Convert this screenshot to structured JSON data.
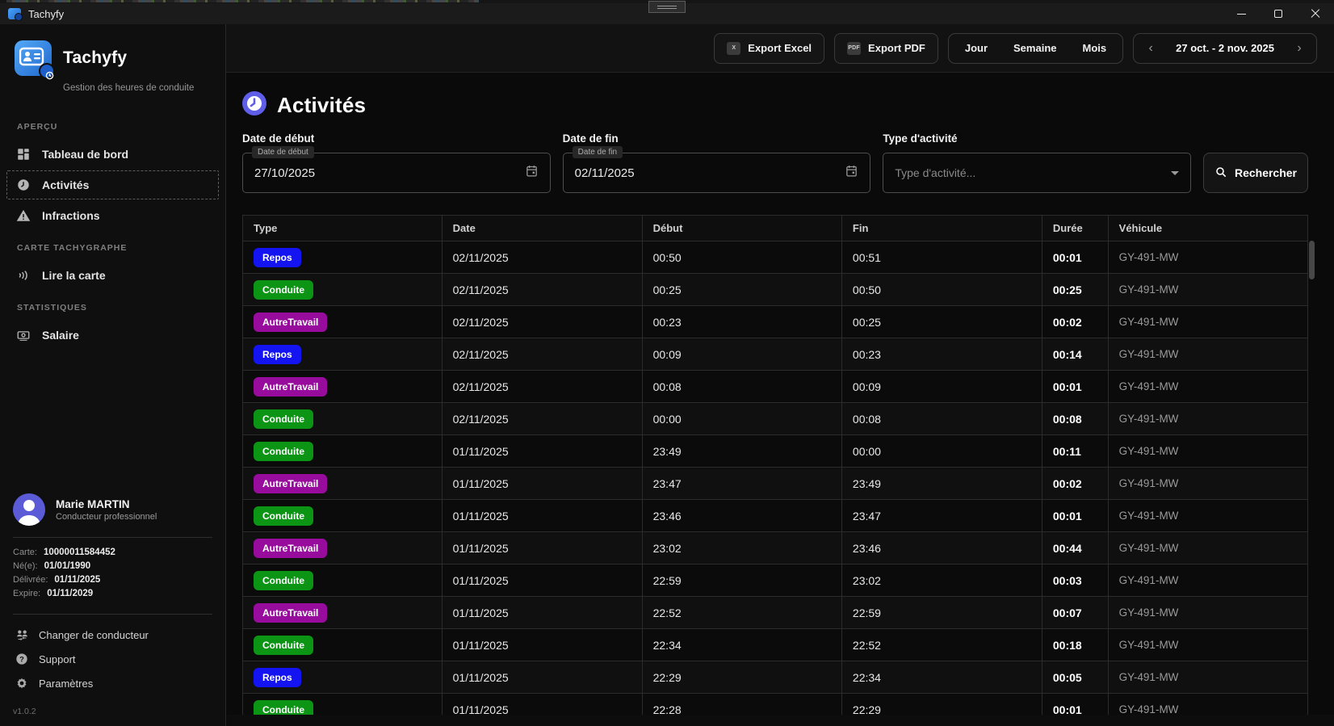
{
  "titlebar": {
    "title": "Tachyfy"
  },
  "sidebar": {
    "brand": {
      "name": "Tachyfy",
      "tagline": "Gestion des heures de conduite"
    },
    "sections": [
      {
        "label": "APERÇU",
        "items": [
          {
            "id": "tableau-de-bord",
            "label": "Tableau de bord",
            "icon": "dashboard",
            "active": false
          },
          {
            "id": "activites",
            "label": "Activités",
            "icon": "clock",
            "active": true
          },
          {
            "id": "infractions",
            "label": "Infractions",
            "icon": "warning",
            "active": false
          }
        ]
      },
      {
        "label": "CARTE TACHYGRAPHE",
        "items": [
          {
            "id": "lire-la-carte",
            "label": "Lire la carte",
            "icon": "contactless",
            "active": false
          }
        ]
      },
      {
        "label": "STATISTIQUES",
        "items": [
          {
            "id": "salaire",
            "label": "Salaire",
            "icon": "banknote",
            "active": false
          }
        ]
      }
    ],
    "profile": {
      "name": "Marie MARTIN",
      "role": "Conducteur professionnel"
    },
    "card_info": [
      {
        "label": "Carte:",
        "value": "10000011584452"
      },
      {
        "label": "Né(e):",
        "value": "01/01/1990"
      },
      {
        "label": "Délivrée:",
        "value": "01/11/2025"
      },
      {
        "label": "Expire:",
        "value": "01/11/2029"
      }
    ],
    "footer_links": [
      {
        "id": "changer-de-conducteur",
        "label": "Changer de conducteur",
        "icon": "users"
      },
      {
        "id": "support",
        "label": "Support",
        "icon": "help"
      },
      {
        "id": "parametres",
        "label": "Paramètres",
        "icon": "gear"
      }
    ],
    "version": "v1.0.2"
  },
  "toolbar": {
    "export_excel": "Export Excel",
    "export_excel_icon_text": "X",
    "export_pdf": "Export PDF",
    "export_pdf_icon_text": "PDF",
    "period_tabs": [
      "Jour",
      "Semaine",
      "Mois"
    ],
    "prev_glyph": "‹",
    "next_glyph": "›",
    "date_range": "27 oct. - 2 nov. 2025"
  },
  "main": {
    "title": "Activités",
    "filters": {
      "start": {
        "label": "Date de début",
        "value": "27/10/2025"
      },
      "end": {
        "label": "Date de fin",
        "value": "02/11/2025"
      },
      "type": {
        "label": "Type d'activité",
        "placeholder": "Type d'activité..."
      },
      "search_label": "Rechercher"
    },
    "table": {
      "columns": [
        "Type",
        "Date",
        "Début",
        "Fin",
        "Durée",
        "Véhicule"
      ],
      "badge_colors": {
        "Repos": "#1414f2",
        "Conduite": "#0c9414",
        "AutreTravail": "#970c9c"
      },
      "rows": [
        {
          "type": "Repos",
          "date": "02/11/2025",
          "start": "00:50",
          "end": "00:51",
          "duration": "00:01",
          "vehicle": "GY-491-MW"
        },
        {
          "type": "Conduite",
          "date": "02/11/2025",
          "start": "00:25",
          "end": "00:50",
          "duration": "00:25",
          "vehicle": "GY-491-MW"
        },
        {
          "type": "AutreTravail",
          "date": "02/11/2025",
          "start": "00:23",
          "end": "00:25",
          "duration": "00:02",
          "vehicle": "GY-491-MW"
        },
        {
          "type": "Repos",
          "date": "02/11/2025",
          "start": "00:09",
          "end": "00:23",
          "duration": "00:14",
          "vehicle": "GY-491-MW"
        },
        {
          "type": "AutreTravail",
          "date": "02/11/2025",
          "start": "00:08",
          "end": "00:09",
          "duration": "00:01",
          "vehicle": "GY-491-MW"
        },
        {
          "type": "Conduite",
          "date": "02/11/2025",
          "start": "00:00",
          "end": "00:08",
          "duration": "00:08",
          "vehicle": "GY-491-MW"
        },
        {
          "type": "Conduite",
          "date": "01/11/2025",
          "start": "23:49",
          "end": "00:00",
          "duration": "00:11",
          "vehicle": "GY-491-MW"
        },
        {
          "type": "AutreTravail",
          "date": "01/11/2025",
          "start": "23:47",
          "end": "23:49",
          "duration": "00:02",
          "vehicle": "GY-491-MW"
        },
        {
          "type": "Conduite",
          "date": "01/11/2025",
          "start": "23:46",
          "end": "23:47",
          "duration": "00:01",
          "vehicle": "GY-491-MW"
        },
        {
          "type": "AutreTravail",
          "date": "01/11/2025",
          "start": "23:02",
          "end": "23:46",
          "duration": "00:44",
          "vehicle": "GY-491-MW"
        },
        {
          "type": "Conduite",
          "date": "01/11/2025",
          "start": "22:59",
          "end": "23:02",
          "duration": "00:03",
          "vehicle": "GY-491-MW"
        },
        {
          "type": "AutreTravail",
          "date": "01/11/2025",
          "start": "22:52",
          "end": "22:59",
          "duration": "00:07",
          "vehicle": "GY-491-MW"
        },
        {
          "type": "Conduite",
          "date": "01/11/2025",
          "start": "22:34",
          "end": "22:52",
          "duration": "00:18",
          "vehicle": "GY-491-MW"
        },
        {
          "type": "Repos",
          "date": "01/11/2025",
          "start": "22:29",
          "end": "22:34",
          "duration": "00:05",
          "vehicle": "GY-491-MW"
        },
        {
          "type": "Conduite",
          "date": "01/11/2025",
          "start": "22:28",
          "end": "22:29",
          "duration": "00:01",
          "vehicle": "GY-491-MW"
        }
      ]
    }
  }
}
